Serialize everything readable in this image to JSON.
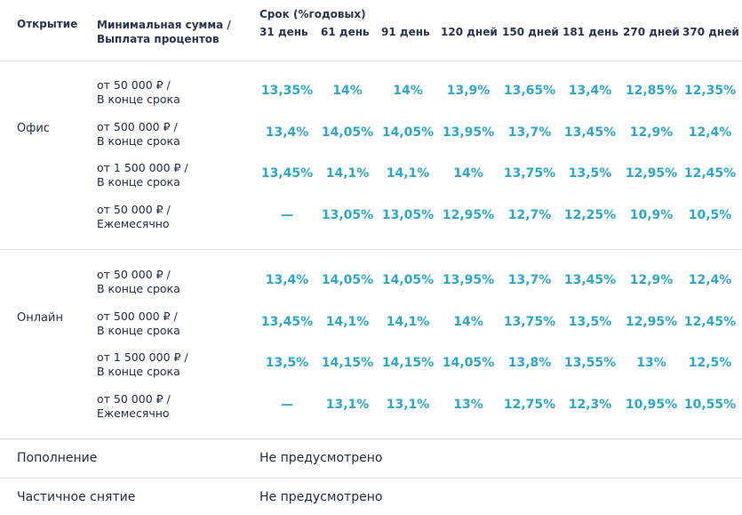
{
  "header": {
    "opening": "Открытие",
    "min_sum_line1": "Минимальная сумма /",
    "min_sum_line2": "Выплата процентов",
    "term_title": "Срок (%годовых)",
    "terms": [
      "31 день",
      "61 день",
      "91 день",
      "120 дней",
      "150 дней",
      "181 день",
      "270 дней",
      "370 дней"
    ]
  },
  "groups": [
    {
      "name": "Офис",
      "rows": [
        {
          "sum": "от 50 000 ₽ /",
          "payout": "В конце срока",
          "rates": [
            "13,35%",
            "14%",
            "14%",
            "13,9%",
            "13,65%",
            "13,4%",
            "12,85%",
            "12,35%"
          ]
        },
        {
          "sum": "от 500 000 ₽ /",
          "payout": "В конце срока",
          "rates": [
            "13,4%",
            "14,05%",
            "14,05%",
            "13,95%",
            "13,7%",
            "13,45%",
            "12,9%",
            "12,4%"
          ]
        },
        {
          "sum": "от 1 500 000 ₽ /",
          "payout": "В конце срока",
          "rates": [
            "13,45%",
            "14,1%",
            "14,1%",
            "14%",
            "13,75%",
            "13,5%",
            "12,95%",
            "12,45%"
          ]
        },
        {
          "sum": "от 50 000 ₽ /",
          "payout": "Ежемесячно",
          "rates": [
            "—",
            "13,05%",
            "13,05%",
            "12,95%",
            "12,7%",
            "12,25%",
            "10,9%",
            "10,5%"
          ]
        }
      ]
    },
    {
      "name": "Онлайн",
      "rows": [
        {
          "sum": "от 50 000 ₽ /",
          "payout": "В конце срока",
          "rates": [
            "13,4%",
            "14,05%",
            "14,05%",
            "13,95%",
            "13,7%",
            "13,45%",
            "12,9%",
            "12,4%"
          ]
        },
        {
          "sum": "от 500 000 ₽ /",
          "payout": "В конце срока",
          "rates": [
            "13,45%",
            "14,1%",
            "14,1%",
            "14%",
            "13,75%",
            "13,5%",
            "12,95%",
            "12,45%"
          ]
        },
        {
          "sum": "от 1 500 000 ₽ /",
          "payout": "В конце срока",
          "rates": [
            "13,5%",
            "14,15%",
            "14,15%",
            "14,05%",
            "13,8%",
            "13,55%",
            "13%",
            "12,5%"
          ]
        },
        {
          "sum": "от 50 000 ₽ /",
          "payout": "Ежемесячно",
          "rates": [
            "—",
            "13,1%",
            "13,1%",
            "13%",
            "12,75%",
            "12,3%",
            "10,95%",
            "10,55%"
          ]
        }
      ]
    }
  ],
  "footer": [
    {
      "label": "Пополнение",
      "value": "Не предусмотрено"
    },
    {
      "label": "Частичное снятие",
      "value": "Не предусмотрено"
    }
  ]
}
